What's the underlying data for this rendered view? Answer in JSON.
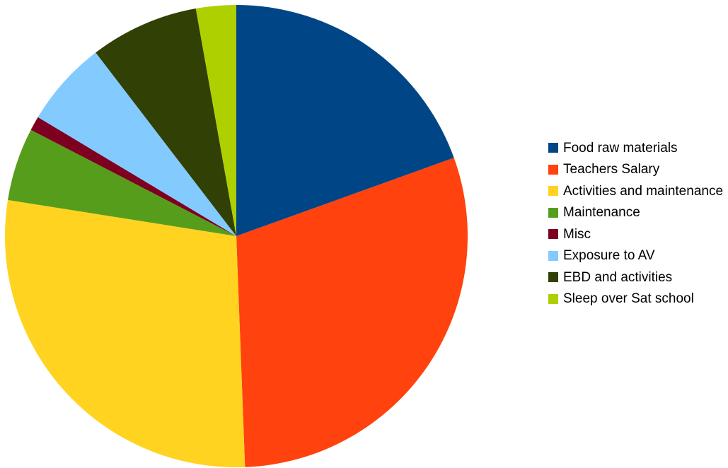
{
  "chart_data": {
    "type": "pie",
    "title": "",
    "start_angle_deg": 0,
    "direction": "clockwise",
    "legend_position": "right",
    "slices": [
      {
        "label": "Food raw materials",
        "value": 19.5,
        "color": "#004586"
      },
      {
        "label": "Teachers Salary",
        "value": 29.9,
        "color": "#FF420E"
      },
      {
        "label": "Activities and maintenance",
        "value": 28.1,
        "color": "#FFD320"
      },
      {
        "label": "Maintenance",
        "value": 5.1,
        "color": "#579D1C"
      },
      {
        "label": "Misc",
        "value": 1.0,
        "color": "#7E0021"
      },
      {
        "label": "Exposure to AV",
        "value": 6.0,
        "color": "#83CAFF"
      },
      {
        "label": "EBD and activities",
        "value": 7.6,
        "color": "#314004"
      },
      {
        "label": "Sleep over Sat school",
        "value": 2.8,
        "color": "#AECF00"
      }
    ]
  }
}
